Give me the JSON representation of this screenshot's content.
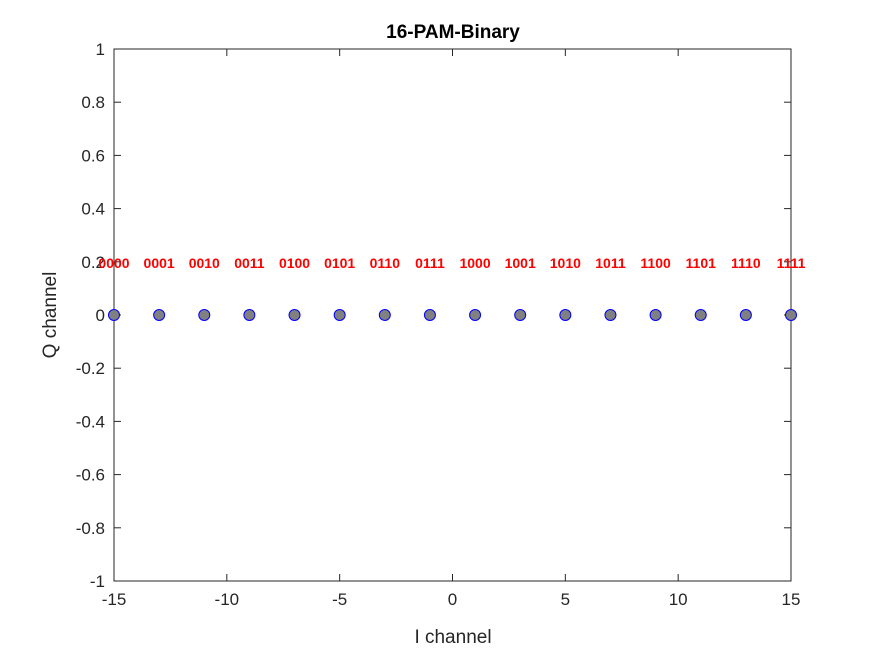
{
  "chart_data": {
    "type": "scatter",
    "title": "16-PAM-Binary",
    "xlabel": "I channel",
    "ylabel": "Q channel",
    "xlim": [
      -15,
      15
    ],
    "ylim": [
      -1,
      1
    ],
    "xticks": [
      -15,
      -10,
      -5,
      0,
      5,
      10,
      15
    ],
    "xtick_labels": [
      "-15",
      "-10",
      "-5",
      "0",
      "5",
      "10",
      "15"
    ],
    "yticks": [
      1,
      0.8,
      0.6,
      0.4,
      0.2,
      0,
      -0.2,
      -0.4,
      -0.6,
      -0.8,
      -1
    ],
    "ytick_labels": [
      "1",
      "0.8",
      "0.6",
      "0.4",
      "0.2",
      "0",
      "-0.2",
      "-0.4",
      "-0.6",
      "-0.8",
      "-1"
    ],
    "grid": false,
    "points": [
      {
        "x": -15,
        "y": 0,
        "label": "0000"
      },
      {
        "x": -13,
        "y": 0,
        "label": "0001"
      },
      {
        "x": -11,
        "y": 0,
        "label": "0010"
      },
      {
        "x": -9,
        "y": 0,
        "label": "0011"
      },
      {
        "x": -7,
        "y": 0,
        "label": "0100"
      },
      {
        "x": -5,
        "y": 0,
        "label": "0101"
      },
      {
        "x": -3,
        "y": 0,
        "label": "0110"
      },
      {
        "x": -1,
        "y": 0,
        "label": "0111"
      },
      {
        "x": 1,
        "y": 0,
        "label": "1000"
      },
      {
        "x": 3,
        "y": 0,
        "label": "1001"
      },
      {
        "x": 5,
        "y": 0,
        "label": "1010"
      },
      {
        "x": 7,
        "y": 0,
        "label": "1011"
      },
      {
        "x": 9,
        "y": 0,
        "label": "1100"
      },
      {
        "x": 11,
        "y": 0,
        "label": "1101"
      },
      {
        "x": 13,
        "y": 0,
        "label": "1110"
      },
      {
        "x": 15,
        "y": 0,
        "label": "1111"
      }
    ],
    "label_y": 0.2,
    "colors": {
      "marker_fill": "#808080",
      "marker_edge": "#0000ff",
      "label": "#ff0000",
      "axis": "#262626"
    }
  }
}
